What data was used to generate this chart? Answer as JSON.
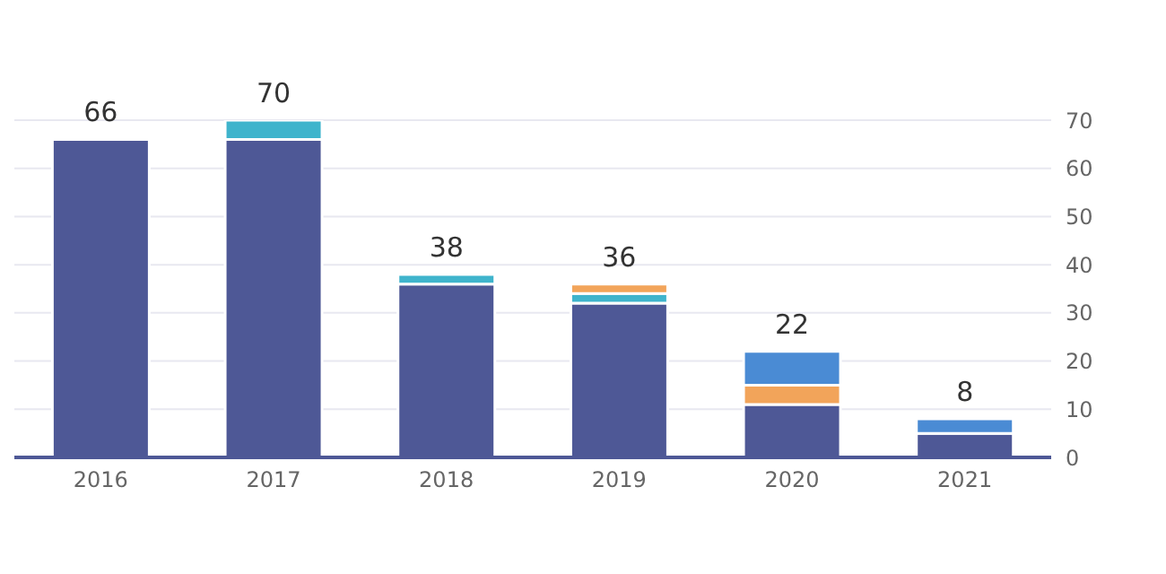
{
  "chart_data": {
    "type": "bar",
    "stacked": true,
    "categories": [
      "2016",
      "2017",
      "2018",
      "2019",
      "2020",
      "2021"
    ],
    "series": [
      {
        "color": "#4e5896",
        "values": [
          66,
          66,
          36,
          32,
          11,
          5
        ]
      },
      {
        "color": "#3fb4cc",
        "values": [
          null,
          4,
          2,
          2,
          null,
          null
        ]
      },
      {
        "color": "#f2a45a",
        "values": [
          null,
          null,
          null,
          2,
          4,
          null
        ]
      },
      {
        "color": "#4a8bd4",
        "values": [
          null,
          null,
          null,
          null,
          7,
          3
        ]
      }
    ],
    "totals": [
      "66",
      "70",
      "38",
      "36",
      "22",
      "8"
    ],
    "ylim": [
      0,
      70
    ],
    "yticks": [
      0,
      10,
      20,
      30,
      40,
      50,
      60,
      70
    ],
    "grid": "y",
    "legend": false
  }
}
